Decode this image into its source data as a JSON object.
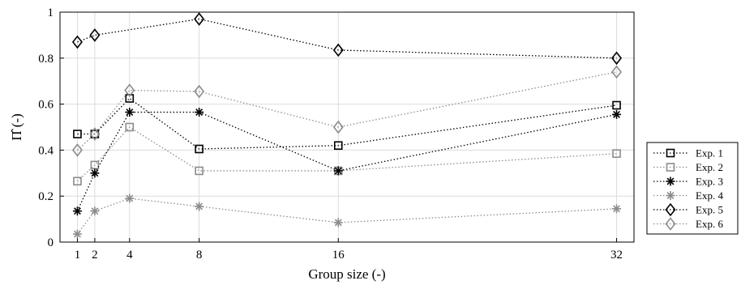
{
  "chart_data": {
    "type": "line",
    "xlabel": "Group size (-)",
    "ylabel": "Π̂ (-)",
    "x": [
      1,
      2,
      4,
      8,
      16,
      32
    ],
    "xlim": [
      0,
      33
    ],
    "ylim": [
      0,
      1
    ],
    "xticks": [
      1,
      2,
      4,
      8,
      16,
      32
    ],
    "yticks": [
      0,
      0.2,
      0.4,
      0.6,
      0.8,
      1
    ],
    "ytick_labels": [
      "0",
      "0.2",
      "0.4",
      "0.6",
      "0.8",
      "1"
    ],
    "grid": true,
    "legend_position": "right",
    "series": [
      {
        "name": "Exp. 1",
        "marker": "square",
        "color": "#000000",
        "values": [
          0.47,
          0.47,
          0.625,
          0.405,
          0.42,
          0.595
        ]
      },
      {
        "name": "Exp. 2",
        "marker": "square",
        "color": "#8c8c8c",
        "values": [
          0.265,
          0.335,
          0.5,
          0.31,
          0.31,
          0.385
        ]
      },
      {
        "name": "Exp. 3",
        "marker": "asterisk",
        "color": "#000000",
        "values": [
          0.135,
          0.3,
          0.565,
          0.565,
          0.31,
          0.555
        ]
      },
      {
        "name": "Exp. 4",
        "marker": "asterisk",
        "color": "#8c8c8c",
        "values": [
          0.035,
          0.135,
          0.19,
          0.155,
          0.085,
          0.145
        ]
      },
      {
        "name": "Exp. 5",
        "marker": "diamond",
        "color": "#000000",
        "values": [
          0.87,
          0.9,
          null,
          0.97,
          0.835,
          0.8
        ]
      },
      {
        "name": "Exp. 6",
        "marker": "diamond",
        "color": "#8c8c8c",
        "values": [
          0.4,
          0.47,
          0.66,
          0.655,
          0.5,
          0.74
        ]
      }
    ]
  }
}
